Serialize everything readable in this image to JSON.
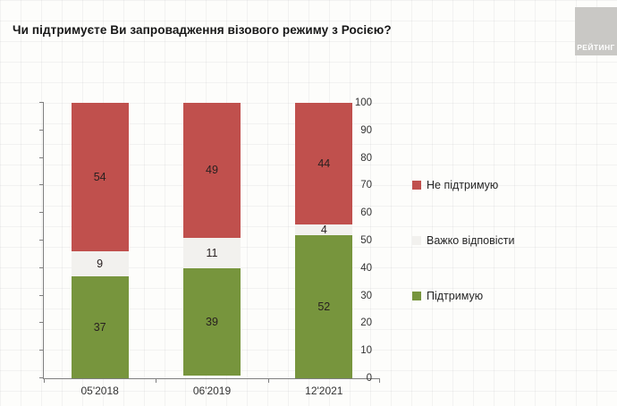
{
  "title": "Чи підтримуєте Ви запровадження візового режиму з Росією?",
  "logo": {
    "text": "РЕЙТИНГ"
  },
  "colors": {
    "oppose_red": "#c0504d",
    "hard_to_answer_white": "#f2f1ee",
    "support_green": "#77953d",
    "axis_gray": "#7f7f7f",
    "logo_gray": "#c9c8c5"
  },
  "legend": {
    "items": [
      {
        "label": "Не підтримую",
        "color": "#c0504d"
      },
      {
        "label": "Важко відповісти",
        "color": "#f2f1ee"
      },
      {
        "label": "Підтримую",
        "color": "#77953d"
      }
    ]
  },
  "chart_data": {
    "type": "bar",
    "subtype": "stacked-column",
    "title": "Чи підтримуєте Ви запровадження візового режиму з Росією?",
    "categories": [
      "05'2018",
      "06'2019",
      "12'2021"
    ],
    "series": [
      {
        "name": "Підтримую",
        "color": "#77953d",
        "values": [
          37,
          39,
          52
        ]
      },
      {
        "name": "Важко відповісти",
        "color": "#f2f1ee",
        "values": [
          9,
          11,
          4
        ]
      },
      {
        "name": "Не підтримую",
        "color": "#c0504d",
        "values": [
          54,
          49,
          44
        ]
      }
    ],
    "xlabel": "",
    "ylabel": "",
    "ylim": [
      0,
      100
    ],
    "ytick_step": 10,
    "grid": false,
    "legend_position": "right",
    "data_labels": true
  }
}
